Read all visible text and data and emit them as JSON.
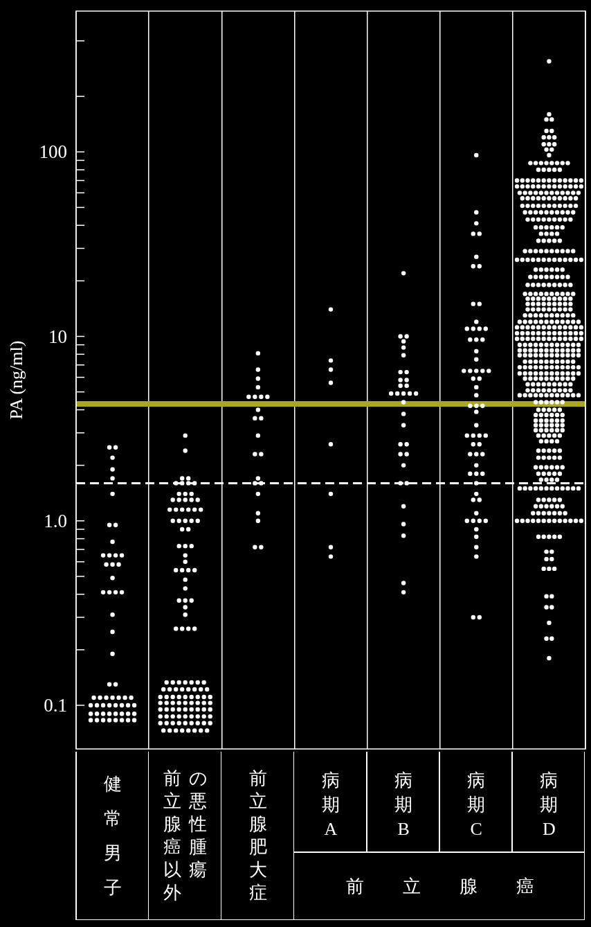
{
  "chart_data": {
    "type": "scatter",
    "ylabel": "PA (ng/ml)",
    "log": true,
    "grid": "x",
    "marker": "circle",
    "ylim": [
      0.058,
      580
    ],
    "yticks": [
      0.1,
      {
        "value": 0.2,
        "label": null
      },
      {
        "value": 0.3,
        "label": null
      },
      {
        "value": 0.4,
        "label": null
      },
      {
        "value": 0.5,
        "label": null
      },
      {
        "value": 0.6,
        "label": null
      },
      {
        "value": 0.7,
        "label": null
      },
      {
        "value": 0.8,
        "label": null
      },
      {
        "value": 0.9,
        "label": null
      },
      {
        "value": 1,
        "label": "1.0"
      },
      {
        "value": 2,
        "label": null
      },
      {
        "value": 3,
        "label": null
      },
      {
        "value": 4,
        "label": null
      },
      {
        "value": 5,
        "label": null
      },
      {
        "value": 6,
        "label": null
      },
      {
        "value": 7,
        "label": null
      },
      {
        "value": 8,
        "label": null
      },
      {
        "value": 9,
        "label": null
      },
      10,
      {
        "value": 20,
        "label": null
      },
      {
        "value": 30,
        "label": null
      },
      {
        "value": 40,
        "label": null
      },
      {
        "value": 50,
        "label": null
      },
      {
        "value": 60,
        "label": null
      },
      {
        "value": 70,
        "label": null
      },
      {
        "value": 80,
        "label": null
      },
      {
        "value": 90,
        "label": null
      },
      100,
      {
        "value": 200,
        "label": null
      },
      {
        "value": 400,
        "label": null
      }
    ],
    "categories": [
      "健常男子",
      "前立腺癌以外の悪性腫瘍",
      "前立腺肥大症",
      "病期A",
      "病期B",
      "病期C",
      "病期D"
    ],
    "annotations": [
      "前立腺癌"
    ],
    "ref_lines": [
      {
        "axis": "y",
        "value": 4.3,
        "color": "#aaa623",
        "line_style": "solid"
      },
      {
        "axis": "y",
        "value": 1.6,
        "color": "#ffffff",
        "line_style": "dashed"
      }
    ],
    "series": [
      {
        "color": "#ffffff",
        "values": [
          2.5,
          2.5,
          2.2,
          1.9,
          1.7,
          1.4,
          0.95,
          0.95,
          0.77,
          0.65,
          0.65,
          0.65,
          0.65,
          0.58,
          0.58,
          0.58,
          0.49,
          0.41,
          0.41,
          0.41,
          0.41,
          0.31,
          0.25,
          0.19,
          0.13,
          0.13,
          0.11,
          0.11,
          0.11,
          0.11,
          0.11,
          0.11,
          0.11,
          0.1,
          0.1,
          0.1,
          0.1,
          0.1,
          0.1,
          0.1,
          0.1,
          0.09,
          0.09,
          0.09,
          0.09,
          0.09,
          0.09,
          0.09,
          0.09,
          0.083,
          0.083,
          0.083,
          0.083,
          0.083,
          0.083,
          0.083,
          0.083
        ],
        "x": [
          "健常男子",
          "健常男子",
          "健常男子",
          "健常男子",
          "健常男子",
          "健常男子",
          "健常男子",
          "健常男子",
          "健常男子",
          "健常男子",
          "健常男子",
          "健常男子",
          "健常男子",
          "健常男子",
          "健常男子",
          "健常男子",
          "健常男子",
          "健常男子",
          "健常男子",
          "健常男子",
          "健常男子",
          "健常男子",
          "健常男子",
          "健常男子",
          "健常男子",
          "健常男子",
          "健常男子",
          "健常男子",
          "健常男子",
          "健常男子",
          "健常男子",
          "健常男子",
          "健常男子",
          "健常男子",
          "健常男子",
          "健常男子",
          "健常男子",
          "健常男子",
          "健常男子",
          "健常男子",
          "健常男子",
          "健常男子",
          "健常男子",
          "健常男子",
          "健常男子",
          "健常男子",
          "健常男子",
          "健常男子",
          "健常男子",
          "健常男子",
          "健常男子",
          "健常男子",
          "健常男子",
          "健常男子",
          "健常男子",
          "健常男子",
          "健常男子"
        ]
      },
      {
        "color": "#ffffff",
        "values": [
          2.9,
          2.4,
          1.7,
          1.7,
          1.6,
          1.6,
          1.6,
          1.6,
          1.4,
          1.4,
          1.4,
          1.3,
          1.3,
          1.3,
          1.3,
          1.3,
          1.15,
          1.15,
          1.15,
          1.15,
          1.15,
          1.15,
          1,
          1,
          1,
          1,
          1,
          0.9,
          0.9,
          0.73,
          0.73,
          0.73,
          0.65,
          0.6,
          0.54,
          0.54,
          0.54,
          0.54,
          0.48,
          0.43,
          0.37,
          0.37,
          0.37,
          0.34,
          0.31,
          0.26,
          0.26,
          0.26,
          0.26,
          0.133,
          0.133,
          0.133,
          0.133,
          0.133,
          0.133,
          0.133,
          0.122,
          0.122,
          0.122,
          0.122,
          0.122,
          0.122,
          0.122,
          0.122,
          0.111,
          0.111,
          0.111,
          0.111,
          0.111,
          0.111,
          0.111,
          0.111,
          0.111,
          0.103,
          0.103,
          0.103,
          0.103,
          0.103,
          0.103,
          0.103,
          0.103,
          0.103,
          0.095,
          0.095,
          0.095,
          0.095,
          0.095,
          0.095,
          0.095,
          0.095,
          0.095,
          0.087,
          0.087,
          0.087,
          0.087,
          0.087,
          0.087,
          0.087,
          0.087,
          0.087,
          0.08,
          0.08,
          0.08,
          0.08,
          0.08,
          0.08,
          0.08,
          0.08,
          0.08,
          0.073,
          0.073,
          0.073,
          0.073,
          0.073,
          0.073,
          0.073,
          0.073
        ],
        "x": [
          "前立腺癌以外の悪性腫瘍",
          "前立腺癌以外の悪性腫瘍",
          "前立腺癌以外の悪性腫瘍",
          "前立腺癌以外の悪性腫瘍",
          "前立腺癌以外の悪性腫瘍",
          "前立腺癌以外の悪性腫瘍",
          "前立腺癌以外の悪性腫瘍",
          "前立腺癌以外の悪性腫瘍",
          "前立腺癌以外の悪性腫瘍",
          "前立腺癌以外の悪性腫瘍",
          "前立腺癌以外の悪性腫瘍",
          "前立腺癌以外の悪性腫瘍",
          "前立腺癌以外の悪性腫瘍",
          "前立腺癌以外の悪性腫瘍",
          "前立腺癌以外の悪性腫瘍",
          "前立腺癌以外の悪性腫瘍",
          "前立腺癌以外の悪性腫瘍",
          "前立腺癌以外の悪性腫瘍",
          "前立腺癌以外の悪性腫瘍",
          "前立腺癌以外の悪性腫瘍",
          "前立腺癌以外の悪性腫瘍",
          "前立腺癌以外の悪性腫瘍",
          "前立腺癌以外の悪性腫瘍",
          "前立腺癌以外の悪性腫瘍",
          "前立腺癌以外の悪性腫瘍",
          "前立腺癌以外の悪性腫瘍",
          "前立腺癌以外の悪性腫瘍",
          "前立腺癌以外の悪性腫瘍",
          "前立腺癌以外の悪性腫瘍",
          "前立腺癌以外の悪性腫瘍",
          "前立腺癌以外の悪性腫瘍",
          "前立腺癌以外の悪性腫瘍",
          "前立腺癌以外の悪性腫瘍",
          "前立腺癌以外の悪性腫瘍",
          "前立腺癌以外の悪性腫瘍",
          "前立腺癌以外の悪性腫瘍",
          "前立腺癌以外の悪性腫瘍",
          "前立腺癌以外の悪性腫瘍",
          "前立腺癌以外の悪性腫瘍",
          "前立腺癌以外の悪性腫瘍",
          "前立腺癌以外の悪性腫瘍",
          "前立腺癌以外の悪性腫瘍",
          "前立腺癌以外の悪性腫瘍",
          "前立腺癌以外の悪性腫瘍",
          "前立腺癌以外の悪性腫瘍",
          "前立腺癌以外の悪性腫瘍",
          "前立腺癌以外の悪性腫瘍",
          "前立腺癌以外の悪性腫瘍",
          "前立腺癌以外の悪性腫瘍",
          "前立腺癌以外の悪性腫瘍",
          "前立腺癌以外の悪性腫瘍",
          "前立腺癌以外の悪性腫瘍",
          "前立腺癌以外の悪性腫瘍",
          "前立腺癌以外の悪性腫瘍",
          "前立腺癌以外の悪性腫瘍",
          "前立腺癌以外の悪性腫瘍",
          "前立腺癌以外の悪性腫瘍",
          "前立腺癌以外の悪性腫瘍",
          "前立腺癌以外の悪性腫瘍",
          "前立腺癌以外の悪性腫瘍",
          "前立腺癌以外の悪性腫瘍",
          "前立腺癌以外の悪性腫瘍",
          "前立腺癌以外の悪性腫瘍",
          "前立腺癌以外の悪性腫瘍",
          "前立腺癌以外の悪性腫瘍",
          "前立腺癌以外の悪性腫瘍",
          "前立腺癌以外の悪性腫瘍",
          "前立腺癌以外の悪性腫瘍",
          "前立腺癌以外の悪性腫瘍",
          "前立腺癌以外の悪性腫瘍",
          "前立腺癌以外の悪性腫瘍",
          "前立腺癌以外の悪性腫瘍",
          "前立腺癌以外の悪性腫瘍",
          "前立腺癌以外の悪性腫瘍",
          "前立腺癌以外の悪性腫瘍",
          "前立腺癌以外の悪性腫瘍",
          "前立腺癌以外の悪性腫瘍",
          "前立腺癌以外の悪性腫瘍",
          "前立腺癌以外の悪性腫瘍",
          "前立腺癌以外の悪性腫瘍",
          "前立腺癌以外の悪性腫瘍",
          "前立腺癌以外の悪性腫瘍",
          "前立腺癌以外の悪性腫瘍",
          "前立腺癌以外の悪性腫瘍",
          "前立腺癌以外の悪性腫瘍",
          "前立腺癌以外の悪性腫瘍",
          "前立腺癌以外の悪性腫瘍",
          "前立腺癌以外の悪性腫瘍",
          "前立腺癌以外の悪性腫瘍",
          "前立腺癌以外の悪性腫瘍",
          "前立腺癌以外の悪性腫瘍",
          "前立腺癌以外の悪性腫瘍",
          "前立腺癌以外の悪性腫瘍",
          "前立腺癌以外の悪性腫瘍",
          "前立腺癌以外の悪性腫瘍",
          "前立腺癌以外の悪性腫瘍",
          "前立腺癌以外の悪性腫瘍",
          "前立腺癌以外の悪性腫瘍",
          "前立腺癌以外の悪性腫瘍",
          "前立腺癌以外の悪性腫瘍",
          "前立腺癌以外の悪性腫瘍",
          "前立腺癌以外の悪性腫瘍",
          "前立腺癌以外の悪性腫瘍",
          "前立腺癌以外の悪性腫瘍",
          "前立腺癌以外の悪性腫瘍",
          "前立腺癌以外の悪性腫瘍",
          "前立腺癌以外の悪性腫瘍",
          "前立腺癌以外の悪性腫瘍",
          "前立腺癌以外の悪性腫瘍",
          "前立腺癌以外の悪性腫瘍",
          "前立腺癌以外の悪性腫瘍",
          "前立腺癌以外の悪性腫瘍",
          "前立腺癌以外の悪性腫瘍",
          "前立腺癌以外の悪性腫瘍",
          "前立腺癌以外の悪性腫瘍",
          "前立腺癌以外の悪性腫瘍",
          "前立腺癌以外の悪性腫瘍"
        ]
      },
      {
        "color": "#ffffff",
        "values": [
          8.1,
          6.6,
          5.9,
          5.3,
          4.7,
          4.7,
          4.7,
          4.7,
          4,
          3.6,
          3.6,
          2.9,
          2.3,
          2.3,
          1.7,
          1.6,
          1.6,
          1.4,
          1.1,
          1,
          0.72,
          0.72
        ],
        "x": [
          "前立腺肥大症",
          "前立腺肥大症",
          "前立腺肥大症",
          "前立腺肥大症",
          "前立腺肥大症",
          "前立腺肥大症",
          "前立腺肥大症",
          "前立腺肥大症",
          "前立腺肥大症",
          "前立腺肥大症",
          "前立腺肥大症",
          "前立腺肥大症",
          "前立腺肥大症",
          "前立腺肥大症",
          "前立腺肥大症",
          "前立腺肥大症",
          "前立腺肥大症",
          "前立腺肥大症",
          "前立腺肥大症",
          "前立腺肥大症",
          "前立腺肥大症",
          "前立腺肥大症"
        ]
      },
      {
        "color": "#ffffff",
        "values": [
          14,
          7.4,
          6.6,
          5.6,
          2.6,
          1.4,
          0.72,
          0.64
        ],
        "x": [
          "病期A",
          "病期A",
          "病期A",
          "病期A",
          "病期A",
          "病期A",
          "病期A",
          "病期A"
        ]
      },
      {
        "color": "#ffffff",
        "values": [
          22,
          10,
          10,
          9.4,
          8.7,
          7.9,
          6.4,
          6.4,
          5.8,
          5.8,
          5.4,
          5.4,
          4.9,
          4.9,
          4.9,
          4.9,
          4.9,
          4.4,
          3.8,
          3.3,
          2.6,
          2.6,
          2.3,
          2.3,
          2,
          1.6,
          1.6,
          1.2,
          0.96,
          0.83,
          0.46,
          0.41
        ],
        "x": [
          "病期B",
          "病期B",
          "病期B",
          "病期B",
          "病期B",
          "病期B",
          "病期B",
          "病期B",
          "病期B",
          "病期B",
          "病期B",
          "病期B",
          "病期B",
          "病期B",
          "病期B",
          "病期B",
          "病期B",
          "病期B",
          "病期B",
          "病期B",
          "病期B",
          "病期B",
          "病期B",
          "病期B",
          "病期B",
          "病期B",
          "病期B",
          "病期B",
          "病期B",
          "病期B",
          "病期B",
          "病期B"
        ]
      },
      {
        "color": "#ffffff",
        "values": [
          96,
          47,
          41,
          36,
          36,
          27,
          24,
          24,
          15,
          15,
          12,
          11,
          11,
          11,
          11,
          9.6,
          9.6,
          9.6,
          8.3,
          7.5,
          6.5,
          6.5,
          6.5,
          6.5,
          6.5,
          5.9,
          5.9,
          5.3,
          4.8,
          4.2,
          4.2,
          4.2,
          3.9,
          3.3,
          2.9,
          2.9,
          2.9,
          2.9,
          2.6,
          2.6,
          2.3,
          2.3,
          2.3,
          2,
          1.8,
          1.8,
          1.8,
          1.6,
          1.4,
          1.3,
          1.3,
          1.1,
          1,
          1,
          1,
          1,
          0.9,
          0.82,
          0.72,
          0.64,
          0.3,
          0.3
        ],
        "x": [
          "病期C",
          "病期C",
          "病期C",
          "病期C",
          "病期C",
          "病期C",
          "病期C",
          "病期C",
          "病期C",
          "病期C",
          "病期C",
          "病期C",
          "病期C",
          "病期C",
          "病期C",
          "病期C",
          "病期C",
          "病期C",
          "病期C",
          "病期C",
          "病期C",
          "病期C",
          "病期C",
          "病期C",
          "病期C",
          "病期C",
          "病期C",
          "病期C",
          "病期C",
          "病期C",
          "病期C",
          "病期C",
          "病期C",
          "病期C",
          "病期C",
          "病期C",
          "病期C",
          "病期C",
          "病期C",
          "病期C",
          "病期C",
          "病期C",
          "病期C",
          "病期C",
          "病期C",
          "病期C",
          "病期C",
          "病期C",
          "病期C",
          "病期C",
          "病期C",
          "病期C",
          "病期C",
          "病期C",
          "病期C",
          "病期C",
          "病期C",
          "病期C",
          "病期C",
          "病期C",
          "病期C",
          "病期C"
        ]
      },
      {
        "color": "#ffffff",
        "values": [
          310,
          160,
          150,
          150,
          130,
          130,
          120,
          120,
          120,
          110,
          110,
          110,
          103,
          103,
          96,
          87,
          87,
          87,
          87,
          87,
          87,
          87,
          87,
          80,
          80,
          80,
          80,
          80,
          70,
          70,
          70,
          70,
          70,
          70,
          70,
          70,
          70,
          70,
          70,
          70,
          70,
          65,
          65,
          65,
          65,
          65,
          65,
          65,
          65,
          65,
          65,
          65,
          65,
          65,
          60,
          60,
          60,
          60,
          60,
          60,
          60,
          60,
          60,
          60,
          60,
          60,
          56,
          56,
          56,
          56,
          56,
          56,
          56,
          56,
          56,
          56,
          56,
          51,
          51,
          51,
          51,
          51,
          51,
          51,
          51,
          51,
          51,
          51,
          47,
          47,
          47,
          47,
          47,
          47,
          47,
          47,
          47,
          47,
          43,
          43,
          43,
          43,
          43,
          43,
          43,
          43,
          43,
          39,
          39,
          39,
          39,
          39,
          39,
          36,
          36,
          36,
          36,
          33,
          33,
          33,
          33,
          33,
          29,
          29,
          29,
          29,
          29,
          29,
          29,
          29,
          29,
          29,
          26,
          26,
          26,
          26,
          26,
          26,
          26,
          26,
          26,
          26,
          26,
          26,
          26,
          23,
          23,
          23,
          23,
          23,
          23,
          21,
          21,
          21,
          21,
          21,
          21,
          21,
          21,
          19,
          19,
          19,
          19,
          19,
          19,
          19,
          19,
          19,
          17,
          17,
          17,
          17,
          17,
          17,
          17,
          17,
          17,
          17,
          16,
          16,
          16,
          16,
          16,
          16,
          16,
          16,
          16,
          15,
          15,
          15,
          15,
          15,
          15,
          15,
          15,
          15,
          14,
          14,
          14,
          14,
          14,
          14,
          14,
          14,
          14,
          13,
          13,
          13,
          13,
          13,
          13,
          13,
          13,
          13,
          13,
          12,
          12,
          12,
          12,
          12,
          12,
          12,
          12,
          12,
          12,
          12,
          12,
          11.2,
          11.2,
          11.2,
          11.2,
          11.2,
          11.2,
          11.2,
          11.2,
          11.2,
          11.2,
          11.2,
          11.2,
          11.2,
          10.4,
          10.4,
          10.4,
          10.4,
          10.4,
          10.4,
          10.4,
          10.4,
          10.4,
          10.4,
          10.4,
          10.4,
          10.4,
          9.7,
          9.7,
          9.7,
          9.7,
          9.7,
          9.7,
          9.7,
          9.7,
          9.7,
          9.7,
          9.7,
          9.7,
          9.7,
          9,
          9,
          9,
          9,
          9,
          9,
          9,
          9,
          9,
          9,
          9,
          9,
          8.4,
          8.4,
          8.4,
          8.4,
          8.4,
          8.4,
          8.4,
          8.4,
          8.4,
          8.4,
          8.4,
          8.4,
          7.9,
          7.9,
          7.9,
          7.9,
          7.9,
          7.9,
          7.9,
          7.9,
          7.9,
          7.9,
          7.9,
          7.9,
          7.3,
          7.3,
          7.3,
          7.3,
          7.3,
          7.3,
          7.3,
          7.3,
          7.3,
          7.3,
          6.8,
          6.8,
          6.8,
          6.8,
          6.8,
          6.8,
          6.8,
          6.8,
          6.8,
          6.8,
          6.8,
          6.8,
          6.3,
          6.3,
          6.3,
          6.3,
          6.3,
          6.3,
          6.3,
          6.3,
          6.3,
          6.3,
          6.3,
          6.3,
          5.9,
          5.9,
          5.9,
          5.9,
          5.9,
          5.9,
          5.9,
          5.9,
          5.9,
          5.9,
          5.5,
          5.5,
          5.5,
          5.5,
          5.5,
          5.5,
          5.5,
          5.5,
          5.5,
          5.1,
          5.1,
          5.1,
          5.1,
          5.1,
          5.1,
          5.1,
          5.1,
          5.1,
          4.8,
          4.8,
          4.8,
          4.8,
          4.8,
          4.8,
          4.8,
          4.8,
          4.8,
          4.8,
          4.8,
          4.8,
          4.4,
          4.4,
          4.4,
          4.4,
          4.4,
          4.4,
          4,
          4,
          4,
          4,
          4,
          3.75,
          3.75,
          3.75,
          3.75,
          3.75,
          3.75,
          3.5,
          3.5,
          3.5,
          3.5,
          3.5,
          3.5,
          3.3,
          3.3,
          3.3,
          3.3,
          3.3,
          3.3,
          3.1,
          3.1,
          3.1,
          3.1,
          3.1,
          3.1,
          2.9,
          2.9,
          2.9,
          2.9,
          2.9,
          2.7,
          2.7,
          2.7,
          2.7,
          2.4,
          2.4,
          2.4,
          2.4,
          2.4,
          2.2,
          2.2,
          2.2,
          2.2,
          2.2,
          1.95,
          1.95,
          1.95,
          1.95,
          1.95,
          1.95,
          1.8,
          1.8,
          1.8,
          1.8,
          1.8,
          1.67,
          1.67,
          1.67,
          1.67,
          1.5,
          1.5,
          1.5,
          1.5,
          1.5,
          1.5,
          1.5,
          1.5,
          1.5,
          1.5,
          1.5,
          1.5,
          1.3,
          1.3,
          1.3,
          1.3,
          1.3,
          1.2,
          1.2,
          1.2,
          1.2,
          1.2,
          1.2,
          1.1,
          1.1,
          1.1,
          1.1,
          1.1,
          1.1,
          1.1,
          1,
          1,
          1,
          1,
          1,
          1,
          1,
          1,
          1,
          1,
          1,
          1,
          1,
          0.82,
          0.82,
          0.82,
          0.82,
          0.82,
          0.68,
          0.68,
          0.62,
          0.62,
          0.55,
          0.55,
          0.55,
          0.39,
          0.39,
          0.34,
          0.34,
          0.28,
          0.23,
          0.23,
          0.18
        ],
        "x": [
          "病期D",
          "病期D",
          "病期D",
          "病期D",
          "病期D",
          "病期D",
          "病期D",
          "病期D",
          "病期D",
          "病期D",
          "病期D",
          "病期D",
          "病期D",
          "病期D",
          "病期D",
          "病期D",
          "病期D",
          "病期D",
          "病期D",
          "病期D",
          "病期D",
          "病期D",
          "病期D",
          "病期D",
          "病期D",
          "病期D",
          "病期D",
          "病期D",
          "病期D",
          "病期D",
          "病期D",
          "病期D",
          "病期D",
          "病期D",
          "病期D",
          "病期D",
          "病期D",
          "病期D",
          "病期D",
          "病期D",
          "病期D",
          "病期D",
          "病期D",
          "病期D",
          "病期D",
          "病期D",
          "病期D",
          "病期D",
          "病期D",
          "病期D",
          "病期D",
          "病期D",
          "病期D",
          "病期D",
          "病期D",
          "病期D",
          "病期D",
          "病期D",
          "病期D",
          "病期D",
          "病期D",
          "病期D",
          "病期D",
          "病期D",
          "病期D",
          "病期D",
          "病期D",
          "病期D",
          "病期D",
          "病期D",
          "病期D",
          "病期D",
          "病期D",
          "病期D",
          "病期D",
          "病期D",
          "病期D",
          "病期D",
          "病期D",
          "病期D",
          "病期D",
          "病期D",
          "病期D",
          "病期D",
          "病期D",
          "病期D",
          "病期D",
          "病期D",
          "病期D",
          "病期D",
          "病期D",
          "病期D",
          "病期D",
          "病期D",
          "病期D",
          "病期D",
          "病期D",
          "病期D",
          "病期D",
          "病期D",
          "病期D",
          "病期D",
          "病期D",
          "病期D",
          "病期D",
          "病期D",
          "病期D",
          "病期D",
          "病期D",
          "病期D",
          "病期D",
          "病期D",
          "病期D",
          "病期D",
          "病期D",
          "病期D",
          "病期D",
          "病期D",
          "病期D",
          "病期D",
          "病期D",
          "病期D",
          "病期D",
          "病期D",
          "病期D",
          "病期D",
          "病期D",
          "病期D",
          "病期D",
          "病期D",
          "病期D",
          "病期D",
          "病期D",
          "病期D",
          "病期D",
          "病期D",
          "病期D",
          "病期D",
          "病期D",
          "病期D",
          "病期D",
          "病期D",
          "病期D",
          "病期D",
          "病期D",
          "病期D",
          "病期D",
          "病期D",
          "病期D",
          "病期D",
          "病期D",
          "病期D",
          "病期D",
          "病期D",
          "病期D",
          "病期D",
          "病期D",
          "病期D",
          "病期D",
          "病期D",
          "病期D",
          "病期D",
          "病期D",
          "病期D",
          "病期D",
          "病期D",
          "病期D",
          "病期D",
          "病期D",
          "病期D",
          "病期D",
          "病期D",
          "病期D",
          "病期D",
          "病期D",
          "病期D",
          "病期D",
          "病期D",
          "病期D",
          "病期D",
          "病期D",
          "病期D",
          "病期D",
          "病期D",
          "病期D",
          "病期D",
          "病期D",
          "病期D",
          "病期D",
          "病期D",
          "病期D",
          "病期D",
          "病期D",
          "病期D",
          "病期D",
          "病期D",
          "病期D",
          "病期D",
          "病期D",
          "病期D",
          "病期D",
          "病期D",
          "病期D",
          "病期D",
          "病期D",
          "病期D",
          "病期D",
          "病期D",
          "病期D",
          "病期D",
          "病期D",
          "病期D",
          "病期D",
          "病期D",
          "病期D",
          "病期D",
          "病期D",
          "病期D",
          "病期D",
          "病期D",
          "病期D",
          "病期D",
          "病期D",
          "病期D",
          "病期D",
          "病期D",
          "病期D",
          "病期D",
          "病期D",
          "病期D",
          "病期D",
          "病期D",
          "病期D",
          "病期D",
          "病期D",
          "病期D",
          "病期D",
          "病期D",
          "病期D",
          "病期D",
          "病期D",
          "病期D",
          "病期D",
          "病期D",
          "病期D",
          "病期D",
          "病期D",
          "病期D",
          "病期D",
          "病期D",
          "病期D",
          "病期D",
          "病期D",
          "病期D",
          "病期D",
          "病期D",
          "病期D",
          "病期D",
          "病期D",
          "病期D",
          "病期D",
          "病期D",
          "病期D",
          "病期D",
          "病期D",
          "病期D",
          "病期D",
          "病期D",
          "病期D",
          "病期D",
          "病期D",
          "病期D",
          "病期D",
          "病期D",
          "病期D",
          "病期D",
          "病期D",
          "病期D",
          "病期D",
          "病期D",
          "病期D",
          "病期D",
          "病期D",
          "病期D",
          "病期D",
          "病期D",
          "病期D",
          "病期D",
          "病期D",
          "病期D",
          "病期D",
          "病期D",
          "病期D",
          "病期D",
          "病期D",
          "病期D",
          "病期D",
          "病期D",
          "病期D",
          "病期D",
          "病期D",
          "病期D",
          "病期D",
          "病期D",
          "病期D",
          "病期D",
          "病期D",
          "病期D",
          "病期D",
          "病期D",
          "病期D",
          "病期D",
          "病期D",
          "病期D",
          "病期D",
          "病期D",
          "病期D",
          "病期D",
          "病期D",
          "病期D",
          "病期D",
          "病期D",
          "病期D",
          "病期D",
          "病期D",
          "病期D",
          "病期D",
          "病期D",
          "病期D",
          "病期D",
          "病期D",
          "病期D",
          "病期D",
          "病期D",
          "病期D",
          "病期D",
          "病期D",
          "病期D",
          "病期D",
          "病期D",
          "病期D",
          "病期D",
          "病期D",
          "病期D",
          "病期D",
          "病期D",
          "病期D",
          "病期D",
          "病期D",
          "病期D",
          "病期D",
          "病期D",
          "病期D",
          "病期D",
          "病期D",
          "病期D",
          "病期D",
          "病期D",
          "病期D",
          "病期D",
          "病期D",
          "病期D",
          "病期D",
          "病期D",
          "病期D",
          "病期D",
          "病期D",
          "病期D",
          "病期D",
          "病期D",
          "病期D",
          "病期D",
          "病期D",
          "病期D",
          "病期D",
          "病期D",
          "病期D",
          "病期D",
          "病期D",
          "病期D",
          "病期D",
          "病期D",
          "病期D",
          "病期D",
          "病期D",
          "病期D",
          "病期D",
          "病期D",
          "病期D",
          "病期D",
          "病期D",
          "病期D",
          "病期D",
          "病期D",
          "病期D",
          "病期D",
          "病期D",
          "病期D",
          "病期D",
          "病期D",
          "病期D",
          "病期D",
          "病期D",
          "病期D",
          "病期D",
          "病期D",
          "病期D",
          "病期D",
          "病期D",
          "病期D",
          "病期D",
          "病期D",
          "病期D",
          "病期D",
          "病期D",
          "病期D",
          "病期D",
          "病期D",
          "病期D",
          "病期D",
          "病期D",
          "病期D",
          "病期D",
          "病期D",
          "病期D",
          "病期D",
          "病期D",
          "病期D",
          "病期D",
          "病期D",
          "病期D",
          "病期D",
          "病期D",
          "病期D",
          "病期D",
          "病期D",
          "病期D",
          "病期D",
          "病期D",
          "病期D",
          "病期D",
          "病期D",
          "病期D",
          "病期D",
          "病期D",
          "病期D",
          "病期D",
          "病期D",
          "病期D",
          "病期D",
          "病期D",
          "病期D",
          "病期D",
          "病期D",
          "病期D",
          "病期D",
          "病期D",
          "病期D",
          "病期D",
          "病期D",
          "病期D",
          "病期D",
          "病期D",
          "病期D",
          "病期D",
          "病期D",
          "病期D",
          "病期D",
          "病期D",
          "病期D",
          "病期D",
          "病期D",
          "病期D",
          "病期D",
          "病期D",
          "病期D",
          "病期D",
          "病期D",
          "病期D",
          "病期D",
          "病期D",
          "病期D",
          "病期D",
          "病期D",
          "病期D",
          "病期D",
          "病期D",
          "病期D",
          "病期D",
          "病期D",
          "病期D",
          "病期D",
          "病期D",
          "病期D",
          "病期D",
          "病期D",
          "病期D",
          "病期D",
          "病期D",
          "病期D",
          "病期D",
          "病期D",
          "病期D",
          "病期D",
          "病期D",
          "病期D",
          "病期D",
          "病期D"
        ]
      }
    ]
  }
}
